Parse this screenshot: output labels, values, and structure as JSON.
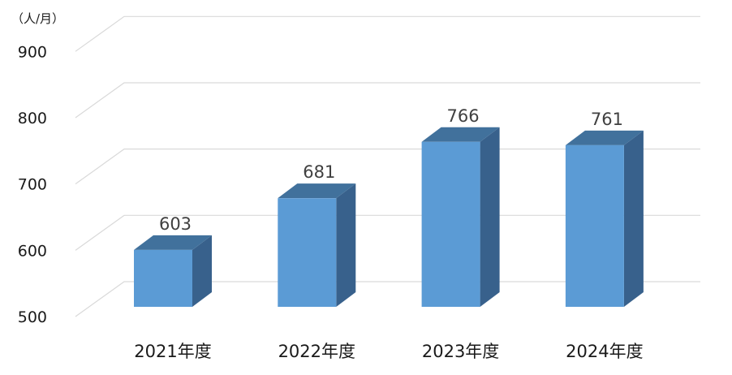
{
  "chart_data": {
    "type": "bar",
    "style": "3d-column",
    "unit_label": "（人/月）",
    "categories": [
      "2021年度",
      "2022年度",
      "2023年度",
      "2024年度"
    ],
    "series": [
      {
        "values": [
          603,
          681,
          766,
          761
        ]
      }
    ],
    "ylim": [
      500,
      900
    ],
    "yticks": [
      500,
      600,
      700,
      800,
      900
    ],
    "grid": true,
    "data_labels": true,
    "colors": {
      "front": "#5b9bd5",
      "top": "#41719c",
      "side": "#38618c"
    }
  }
}
